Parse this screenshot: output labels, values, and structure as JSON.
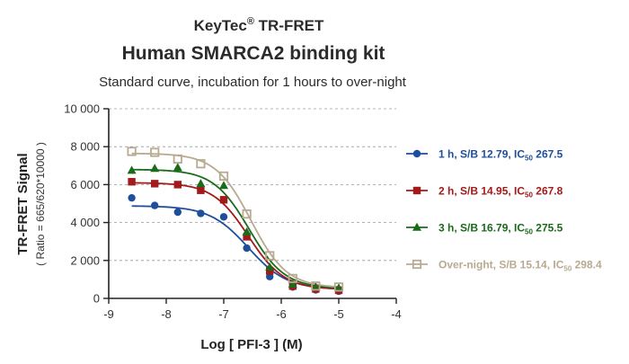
{
  "header": {
    "title_brand": "KeyTec",
    "title_reg": "®",
    "title_suffix": " TR-FRET",
    "title_main": "Human SMARCA2 binding kit",
    "subtitle": "Standard curve,  incubation for 1 hours to over-night"
  },
  "chart_data": {
    "type": "scatter",
    "xlabel": "Log [ PFI-3 ]  (M)",
    "ylabel": "TR-FRET Signal",
    "ylabel_sub": "( Ratio = 665/620*10000 )",
    "xlim": [
      -9,
      -4
    ],
    "ylim": [
      0,
      10000
    ],
    "x_ticks": [
      -9,
      -8,
      -7,
      -6,
      -5,
      -4
    ],
    "x_tick_labels": [
      "-9",
      "-8",
      "-7",
      "-6",
      "-5",
      "-4"
    ],
    "y_ticks": [
      0,
      2000,
      4000,
      6000,
      8000,
      10000
    ],
    "y_tick_labels": [
      "0",
      "2 000",
      "4 000",
      "6 000",
      "8 000",
      "10 000"
    ],
    "grid": "horizontal dashed",
    "legend_position": "right",
    "x": [
      -8.6,
      -8.2,
      -7.8,
      -7.4,
      -7.0,
      -6.6,
      -6.2,
      -5.8,
      -5.4,
      -5.0
    ],
    "series": [
      {
        "label_prefix": "1 h, S/B 12.79, IC",
        "label_sub": "50",
        "label_suffix": " 267.5",
        "color": "#1f4e9c",
        "marker": "circle",
        "values": [
          5300,
          4900,
          4550,
          4480,
          4300,
          2650,
          1150,
          600,
          450,
          380
        ],
        "fit": {
          "top": 4880,
          "bottom": 470,
          "log_ic50": -6.573,
          "hill": -1.3
        }
      },
      {
        "label_prefix": "2 h, S/B 14.95, IC",
        "label_sub": "50",
        "label_suffix": " 267.8",
        "color": "#a31a1a",
        "marker": "square",
        "values": [
          6150,
          6050,
          6000,
          5700,
          5200,
          3250,
          1450,
          650,
          500,
          430
        ],
        "fit": {
          "top": 6100,
          "bottom": 470,
          "log_ic50": -6.572,
          "hill": -1.4
        }
      },
      {
        "label_prefix": "3 h, S/B 16.79, IC",
        "label_sub": "50",
        "label_suffix": " 275.5",
        "color": "#1a6b1a",
        "marker": "triangle",
        "values": [
          6750,
          6850,
          6900,
          6050,
          5950,
          3500,
          1650,
          750,
          600,
          550
        ],
        "fit": {
          "top": 6800,
          "bottom": 520,
          "log_ic50": -6.56,
          "hill": -1.4
        }
      },
      {
        "label_prefix": "Over-night, S/B 15.14, IC",
        "label_sub": "50",
        "label_suffix": " 298.4",
        "color": "#b8aa90",
        "marker": "open-square",
        "values": [
          7750,
          7700,
          7350,
          7100,
          6450,
          4450,
          2250,
          1050,
          650,
          600
        ],
        "fit": {
          "top": 7650,
          "bottom": 560,
          "log_ic50": -6.525,
          "hill": -1.4
        }
      }
    ]
  }
}
